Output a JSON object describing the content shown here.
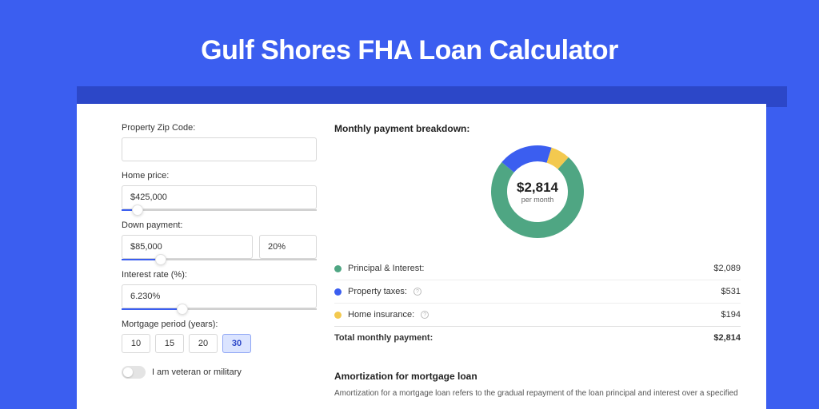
{
  "page": {
    "title": "Gulf Shores FHA Loan Calculator",
    "background_color": "#3b5ef0",
    "band_color": "#2c47c8"
  },
  "form": {
    "zip_label": "Property Zip Code:",
    "zip_value": "",
    "price_label": "Home price:",
    "price_value": "$425,000",
    "price_slider_percent": 8,
    "down_label": "Down payment:",
    "down_value": "$85,000",
    "down_pct_value": "20%",
    "down_slider_percent": 20,
    "rate_label": "Interest rate (%):",
    "rate_value": "6.230%",
    "rate_slider_percent": 31,
    "period_label": "Mortgage period (years):",
    "period_options": [
      "10",
      "15",
      "20",
      "30"
    ],
    "period_selected": "30",
    "veteran_label": "I am veteran or military",
    "veteran_on": false
  },
  "breakdown": {
    "title": "Monthly payment breakdown:",
    "center_amount": "$2,814",
    "center_sub": "per month",
    "donut": {
      "radius": 48,
      "stroke": 20,
      "slices": [
        {
          "color": "#4fa683",
          "fraction": 0.742
        },
        {
          "color": "#3b5ef0",
          "fraction": 0.189
        },
        {
          "color": "#f3c94f",
          "fraction": 0.069
        }
      ],
      "start_angle_deg": -48
    },
    "lines": [
      {
        "label": "Principal & Interest:",
        "color": "#4fa683",
        "info": false,
        "value": "$2,089"
      },
      {
        "label": "Property taxes:",
        "color": "#3b5ef0",
        "info": true,
        "value": "$531"
      },
      {
        "label": "Home insurance:",
        "color": "#f3c94f",
        "info": true,
        "value": "$194"
      }
    ],
    "total_label": "Total monthly payment:",
    "total_value": "$2,814"
  },
  "amortization": {
    "title": "Amortization for mortgage loan",
    "text": "Amortization for a mortgage loan refers to the gradual repayment of the loan principal and interest over a specified"
  }
}
